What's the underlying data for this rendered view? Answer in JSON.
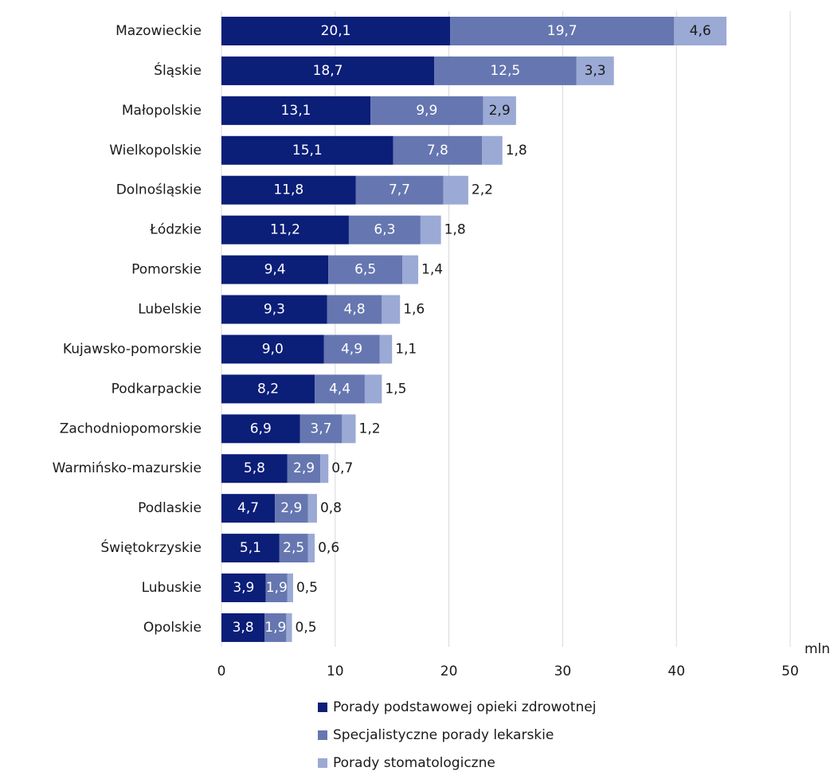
{
  "chart_data": {
    "type": "stacked-barh",
    "categories": [
      "Mazowieckie",
      "Śląskie",
      "Małopolskie",
      "Wielkopolskie",
      "Dolnośląskie",
      "Łódzkie",
      "Pomorskie",
      "Lubelskie",
      "Kujawsko-pomorskie",
      "Podkarpackie",
      "Zachodniopomorskie",
      "Warmińsko-mazurskie",
      "Podlaskie",
      "Świętokrzyskie",
      "Lubuskie",
      "Opolskie"
    ],
    "series": [
      {
        "name": "Porady podstawowej opieki zdrowotnej",
        "color": "#0b1e78",
        "values": [
          20.1,
          18.7,
          13.1,
          15.1,
          11.8,
          11.2,
          9.4,
          9.3,
          9.0,
          8.2,
          6.9,
          5.8,
          4.7,
          5.1,
          3.9,
          3.8
        ],
        "value_labels": [
          "20,1",
          "18,7",
          "13,1",
          "15,1",
          "11,8",
          "11,2",
          "9,4",
          "9,3",
          "9,0",
          "8,2",
          "6,9",
          "5,8",
          "4,7",
          "5,1",
          "3,9",
          "3,8"
        ]
      },
      {
        "name": "Specjalistyczne porady lekarskie",
        "color": "#6676b0",
        "values": [
          19.7,
          12.5,
          9.9,
          7.8,
          7.7,
          6.3,
          6.5,
          4.8,
          4.9,
          4.4,
          3.7,
          2.9,
          2.9,
          2.5,
          1.9,
          1.9
        ],
        "value_labels": [
          "19,7",
          "12,5",
          "9,9",
          "7,8",
          "7,7",
          "6,3",
          "6,5",
          "4,8",
          "4,9",
          "4,4",
          "3,7",
          "2,9",
          "2,9",
          "2,5",
          "1,9",
          "1,9"
        ]
      },
      {
        "name": "Porady stomatologiczne",
        "color": "#9ba9d5",
        "values": [
          4.6,
          3.3,
          2.9,
          1.8,
          2.2,
          1.8,
          1.4,
          1.6,
          1.1,
          1.5,
          1.2,
          0.7,
          0.8,
          0.6,
          0.5,
          0.5
        ],
        "value_labels": [
          "4,6",
          "3,3",
          "2,9",
          "1,8",
          "2,2",
          "1,8",
          "1,4",
          "1,6",
          "1,1",
          "1,5",
          "1,2",
          "0,7",
          "0,8",
          "0,6",
          "0,5",
          "0,5"
        ]
      }
    ],
    "xlim": [
      0,
      50
    ],
    "xticks": [
      0,
      10,
      20,
      30,
      40,
      50
    ],
    "x_unit": "mln",
    "grid": true
  }
}
